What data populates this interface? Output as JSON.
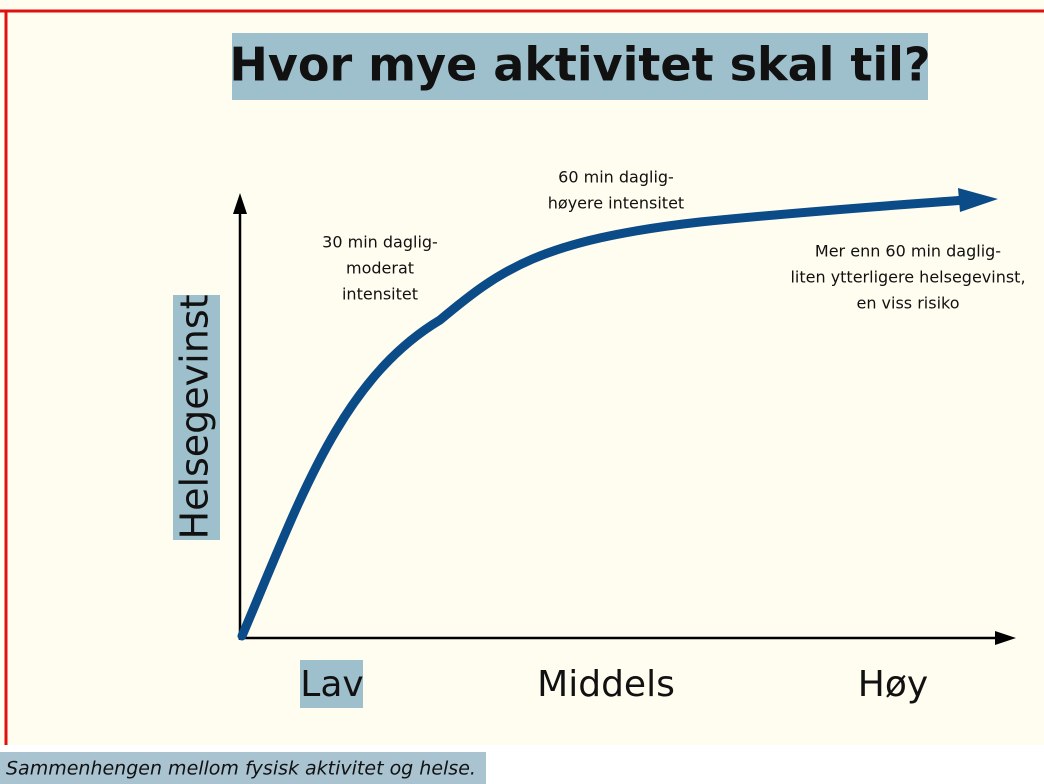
{
  "title": "Hvor mye aktivitet skal til?",
  "y_label": "Helsegevinst",
  "x_labels": [
    "Lav",
    "Middels",
    "Høy"
  ],
  "annotations": [
    [
      "30 min daglig-",
      "moderat",
      "intensitet"
    ],
    [
      "60 min daglig-",
      "høyere intensitet"
    ],
    [
      "Mer enn 60 min daglig-",
      "liten ytterligere helsegevinst,",
      "en viss risiko"
    ]
  ],
  "caption": "Sammenhengen mellom fysisk aktivitet og helse."
}
